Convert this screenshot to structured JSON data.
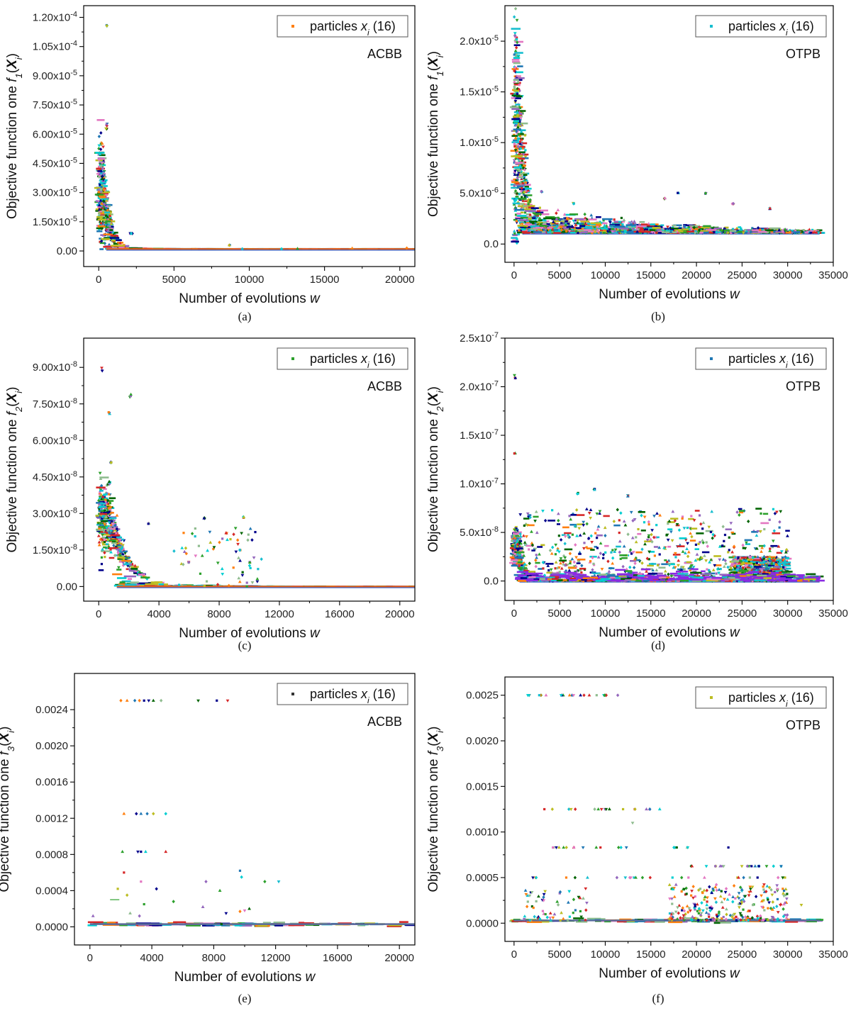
{
  "colors": {
    "palette": [
      "#ff7f0e",
      "#17becf",
      "#2ca02c",
      "#1f77b4",
      "#9467bd",
      "#d62728",
      "#bcbd22",
      "#006400",
      "#e377c2",
      "#00008b",
      "#00ced1",
      "#8fbc8f"
    ],
    "axis": "#000000"
  },
  "chart_data": [
    {
      "type": "scatter",
      "panel": "a",
      "caption": "(a)",
      "method": "ACBB",
      "legend": {
        "prefix": "particles ",
        "var": "x",
        "sub": "i",
        "suffix": " (16)",
        "color": "#ff7f0e",
        "placement": "top-right"
      },
      "ylabel": {
        "prefix": "Objective function one ",
        "f": "f",
        "fsub": "1",
        "X": "X",
        "Xsub": "i"
      },
      "xlabel": {
        "text": "Number of evolutions ",
        "var": "w"
      },
      "xlim": [
        -1000,
        21000
      ],
      "ylim": [
        -8e-06,
        0.000126
      ],
      "xticks": [
        0,
        5000,
        10000,
        15000,
        20000
      ],
      "xtick_labels": [
        "0",
        "5000",
        "10000",
        "15000",
        "20000"
      ],
      "yticks": [
        0,
        1.5e-05,
        3e-05,
        4.5e-05,
        6e-05,
        7.5e-05,
        9e-05,
        0.000105,
        0.00012
      ],
      "ytick_labels": [
        "0.00",
        "1.50x10<sup>-5</sup>",
        "3.00x10<sup>-5</sup>",
        "4.50x10<sup>-5</sup>",
        "6.00x10<sup>-5</sup>",
        "7.50x10<sup>-5</sup>",
        "9.00x10<sup>-5</sup>",
        "1.05x10<sup>-4</sup>",
        "1.20x10<sup>-4</sup>"
      ],
      "x_max": 21000,
      "floor": 1e-06,
      "peak": 2.8e-05,
      "peak_spread": 1.4e-05,
      "decay": 500,
      "clusters": [
        [
          10,
          3e-05
        ],
        [
          520,
          6.25e-05
        ],
        [
          520,
          6.5e-05
        ],
        [
          530,
          0.000115
        ],
        [
          200,
          5.5e-05
        ],
        [
          250,
          4.5e-05
        ],
        [
          2100,
          9e-06
        ],
        [
          2200,
          9e-06
        ],
        [
          8700,
          3e-06
        ]
      ],
      "late_scatter": 5e-07,
      "late_noise_n": 5
    },
    {
      "type": "scatter",
      "panel": "b",
      "caption": "(b)",
      "method": "OTPB",
      "legend": {
        "prefix": "particles ",
        "var": "x",
        "sub": "i",
        "suffix": " (16)",
        "color": "#17becf",
        "placement": "top-right"
      },
      "ylabel": {
        "prefix": "Objective function one ",
        "f": "f",
        "fsub": "1",
        "X": "X",
        "Xsub": "i"
      },
      "xlabel": {
        "text": "Number of evolutions ",
        "var": "w"
      },
      "xlim": [
        -1000,
        35000
      ],
      "ylim": [
        -1.8e-06,
        2.35e-05
      ],
      "xticks": [
        0,
        5000,
        10000,
        15000,
        20000,
        25000,
        30000,
        35000
      ],
      "xtick_labels": [
        "0",
        "5000",
        "10000",
        "15000",
        "20000",
        "25000",
        "30000",
        "35000"
      ],
      "yticks": [
        0,
        5e-06,
        1e-05,
        1.5e-05,
        2e-05
      ],
      "ytick_labels": [
        "0.0",
        "5.0x10<sup>-6</sup>",
        "1.0x10<sup>-5</sup>",
        "1.5x10<sup>-5</sup>",
        "2.0x10<sup>-5</sup>"
      ],
      "x_max": 33500,
      "floor": 1.1e-06,
      "peak": 1.1e-05,
      "peak_spread": 6e-06,
      "decay": 900,
      "band_top": 3.8e-06,
      "band_decay": 14000,
      "clusters": [
        [
          100,
          2.05e-05
        ],
        [
          3000,
          5.2e-06
        ],
        [
          6500,
          4e-06
        ],
        [
          16500,
          4.5e-06
        ],
        [
          18000,
          5e-06
        ],
        [
          21000,
          5e-06
        ],
        [
          24000,
          4e-06
        ],
        [
          28000,
          3.5e-06
        ]
      ],
      "dense_n": 1400
    },
    {
      "type": "scatter",
      "panel": "c",
      "caption": "(c)",
      "method": "ACBB",
      "legend": {
        "prefix": "particles ",
        "var": "x",
        "sub": "i",
        "suffix": " (16)",
        "color": "#2ca02c",
        "placement": "top-right"
      },
      "ylabel": {
        "prefix": "Objective function one ",
        "f": "f",
        "fsub": "2",
        "X": "X",
        "Xsub": "i"
      },
      "xlabel": {
        "text": "Number of evolutions ",
        "var": "w"
      },
      "xlim": [
        -1000,
        21000
      ],
      "ylim": [
        -6e-09,
        1.02e-07
      ],
      "xticks": [
        0,
        4000,
        8000,
        12000,
        16000,
        20000
      ],
      "xtick_labels": [
        "0",
        "4000",
        "8000",
        "12000",
        "16000",
        "20000"
      ],
      "yticks": [
        0,
        1.5e-08,
        3e-08,
        4.5e-08,
        6e-08,
        7.5e-08,
        9e-08
      ],
      "ytick_labels": [
        "0.00",
        "1.50x10<sup>-8</sup>",
        "3.00x10<sup>-8</sup>",
        "4.50x10<sup>-8</sup>",
        "6.00x10<sup>-8</sup>",
        "7.50x10<sup>-8</sup>",
        "9.00x10<sup>-8</sup>"
      ],
      "x_max": 21000,
      "floor": 0,
      "peak": 2.8e-08,
      "peak_spread": 8e-09,
      "decay": 1200,
      "clusters": [
        [
          200,
          8.9e-08
        ],
        [
          2100,
          7.85e-08
        ],
        [
          700,
          7.1e-08
        ],
        [
          800,
          5.1e-08
        ],
        [
          700,
          4.3e-08
        ],
        [
          3300,
          2.6e-08
        ],
        [
          7000,
          2.8e-08
        ],
        [
          9600,
          2.85e-08
        ],
        [
          8500,
          2.2e-08
        ],
        [
          10000,
          1e-08
        ],
        [
          9400,
          1.5e-08
        ],
        [
          6000,
          1e-08
        ]
      ],
      "mid_scatter_range": [
        5000,
        11000
      ],
      "mid_scatter_n": 60,
      "mid_scatter_max": 2.4e-08
    },
    {
      "type": "scatter",
      "panel": "d",
      "caption": "(d)",
      "method": "OTPB",
      "legend": {
        "prefix": "particles ",
        "var": "x",
        "sub": "i",
        "suffix": " (16)",
        "color": "#1f77b4",
        "placement": "top-right"
      },
      "ylabel": {
        "prefix": "Objective function one ",
        "f": "f",
        "fsub": "2",
        "X": "X",
        "Xsub": "i"
      },
      "xlabel": {
        "text": "Number of evolutions ",
        "var": "w"
      },
      "xlim": [
        -1000,
        35000
      ],
      "ylim": [
        -2e-08,
        2.5e-07
      ],
      "xticks": [
        0,
        5000,
        10000,
        15000,
        20000,
        25000,
        30000,
        35000
      ],
      "xtick_labels": [
        "0",
        "5000",
        "10000",
        "15000",
        "20000",
        "25000",
        "30000",
        "35000"
      ],
      "yticks": [
        0,
        5e-08,
        1e-07,
        1.5e-07,
        2e-07,
        2.5e-07
      ],
      "ytick_labels": [
        "0.0",
        "5.0x10<sup>-8</sup>",
        "1.0x10<sup>-7</sup>",
        "1.5x10<sup>-7</sup>",
        "2.0x10<sup>-7</sup>",
        "2.5x10<sup>-7</sup>"
      ],
      "x_max": 33500,
      "floor": 0,
      "peak": 3.5e-08,
      "peak_spread": 1e-08,
      "decay": 600,
      "clusters": [
        [
          100,
          2.1e-07
        ],
        [
          100,
          1.32e-07
        ],
        [
          8800,
          9.4e-08
        ],
        [
          12500,
          8.8e-08
        ],
        [
          7000,
          9e-08
        ]
      ],
      "spread_max": 7.5e-08,
      "spread_n": 900,
      "dense_band": [
        24000,
        30000,
        2.5e-08
      ],
      "dense_n": 500
    },
    {
      "type": "scatter",
      "panel": "e",
      "caption": "(e)",
      "method": "ACBB",
      "legend": {
        "prefix": "particles ",
        "var": "x",
        "sub": "i",
        "suffix": " (16)",
        "color": "#333333",
        "placement": "top-right"
      },
      "ylabel": {
        "prefix": "Objective function one ",
        "f": "f",
        "fsub": "3",
        "X": "X",
        "Xsub": "i"
      },
      "xlabel": {
        "text": "Number of evolutions ",
        "var": "w"
      },
      "xlim": [
        -1000,
        21000
      ],
      "ylim": [
        -0.0002,
        0.0028
      ],
      "xticks": [
        0,
        4000,
        8000,
        12000,
        16000,
        20000
      ],
      "xtick_labels": [
        "0",
        "4000",
        "8000",
        "12000",
        "16000",
        "20000"
      ],
      "yticks": [
        0,
        0.0004,
        0.0008,
        0.0012,
        0.0016,
        0.002,
        0.0024
      ],
      "ytick_labels": [
        "0.0000",
        "0.0004",
        "0.0008",
        "0.0012",
        "0.0016",
        "0.0020",
        "0.0024"
      ],
      "x_max": 21000,
      "floor": 3e-05,
      "levels": [
        0.0025,
        0.00125,
        0.00083
      ],
      "level_points": [
        [
          2000,
          0.0025
        ],
        [
          2400,
          0.0025
        ],
        [
          2900,
          0.0025
        ],
        [
          3200,
          0.0025
        ],
        [
          3500,
          0.0025
        ],
        [
          3800,
          0.0025
        ],
        [
          4100,
          0.0025
        ],
        [
          4600,
          0.0025
        ],
        [
          7000,
          0.0025
        ],
        [
          8200,
          0.0025
        ],
        [
          8900,
          0.0025
        ],
        [
          2200,
          0.00125
        ],
        [
          3000,
          0.00125
        ],
        [
          3300,
          0.00125
        ],
        [
          3700,
          0.00125
        ],
        [
          4100,
          0.00125
        ],
        [
          4900,
          0.00125
        ],
        [
          2100,
          0.00083
        ],
        [
          3100,
          0.00083
        ],
        [
          3300,
          0.00083
        ],
        [
          3600,
          0.00083
        ],
        [
          4900,
          0.00083
        ]
      ],
      "misc_points": [
        [
          2200,
          0.0006
        ],
        [
          1800,
          0.00042
        ],
        [
          2400,
          0.00035
        ],
        [
          3300,
          0.0005
        ],
        [
          3500,
          0.00025
        ],
        [
          4300,
          0.00042
        ],
        [
          5400,
          0.00028
        ],
        [
          7500,
          0.0005
        ],
        [
          8400,
          0.0004
        ],
        [
          9700,
          0.00062
        ],
        [
          9800,
          0.00055
        ],
        [
          11300,
          0.0005
        ],
        [
          12200,
          0.0005
        ],
        [
          10300,
          0.0002
        ],
        [
          8800,
          0.00015
        ],
        [
          7300,
          0.00022
        ],
        [
          2600,
          0.00015
        ],
        [
          3200,
          0.00012
        ],
        [
          200,
          0.00012
        ],
        [
          9700,
          0.00017
        ],
        [
          10000,
          0.00018
        ],
        [
          8500,
          3e-05
        ]
      ],
      "line_segment": [
        1300,
        1900,
        0.0003
      ]
    },
    {
      "type": "scatter",
      "panel": "f",
      "caption": "(f)",
      "method": "OTPB",
      "legend": {
        "prefix": "particles ",
        "var": "x",
        "sub": "i",
        "suffix": " (16)",
        "color": "#bcbd22",
        "placement": "top-right"
      },
      "ylabel": {
        "prefix": "Objective function one ",
        "f": "f",
        "fsub": "3",
        "X": "X",
        "Xsub": "i"
      },
      "xlabel": {
        "text": "Number of evolutions ",
        "var": "w"
      },
      "xlim": [
        -1000,
        35000
      ],
      "ylim": [
        -0.0002,
        0.0027
      ],
      "xticks": [
        0,
        5000,
        10000,
        15000,
        20000,
        25000,
        30000,
        35000
      ],
      "xtick_labels": [
        "0",
        "5000",
        "10000",
        "15000",
        "20000",
        "25000",
        "30000",
        "35000"
      ],
      "yticks": [
        0,
        0.0005,
        0.001,
        0.0015,
        0.002,
        0.0025
      ],
      "ytick_labels": [
        "0.0000",
        "0.0005",
        "0.0010",
        "0.0015",
        "0.0020",
        "0.0025"
      ],
      "x_max": 33500,
      "floor": 3e-05,
      "levels": [
        0.0025,
        0.00125,
        0.00083,
        0.000625,
        0.0005
      ],
      "level_ranges": [
        [
          [
            1200,
            12000
          ],
          0.0025,
          22
        ],
        [
          [
            1200,
            17000
          ],
          0.00125,
          18
        ],
        [
          [
            1200,
            12500
          ],
          0.00083,
          14
        ],
        [
          [
            17500,
            20000
          ],
          0.00083,
          5
        ],
        [
          [
            18500,
            29500
          ],
          0.000625,
          20
        ],
        [
          [
            1500,
            30000
          ],
          0.0005,
          26
        ]
      ],
      "misc_points": [
        [
          13000,
          0.0011
        ],
        [
          23500,
          0.00083
        ],
        [
          31500,
          0.0002
        ]
      ],
      "spread_ranges": [
        [
          [
            1000,
            8000
          ],
          0.00035,
          60
        ],
        [
          [
            17000,
            30000
          ],
          0.0004,
          260
        ]
      ]
    }
  ]
}
